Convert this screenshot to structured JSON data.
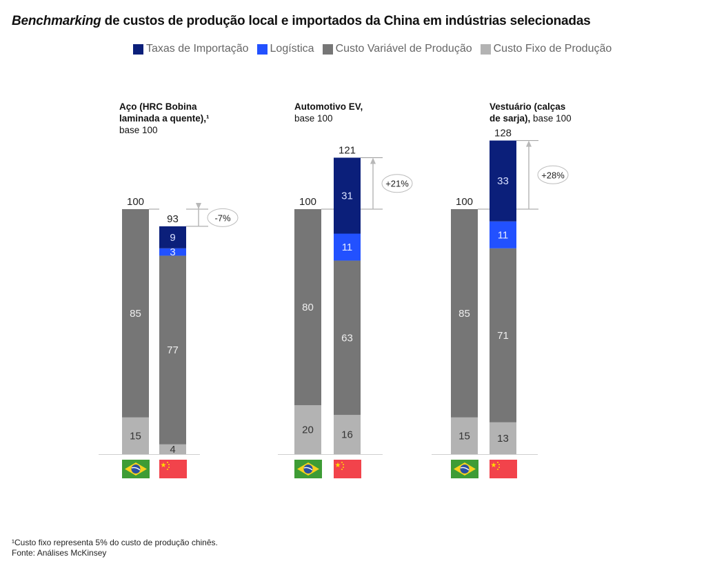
{
  "title": {
    "italic": "Benchmarking",
    "rest": " de custos de produção local e importados da China em indústrias selecionadas"
  },
  "legend": [
    {
      "label": "Taxas de Importação",
      "color": "#0b1f7a"
    },
    {
      "label": "Logística",
      "color": "#2251ff"
    },
    {
      "label": "Custo Variável de Produção",
      "color": "#767676"
    },
    {
      "label": "Custo Fixo de Produção",
      "color": "#b3b3b3"
    }
  ],
  "footer": {
    "note": "¹Custo fixo representa 5% do custo de produção chinês.",
    "source": " Fonte: Análises McKinsey"
  },
  "chart_data": {
    "type": "bar",
    "stacked": true,
    "title": "Benchmarking de custos de produção local e importados da China em indústrias selecionadas",
    "series_order": [
      "Custo Fixo de Produção",
      "Custo Variável de Produção",
      "Logística",
      "Taxas de Importação"
    ],
    "panels": [
      {
        "title_bold": "Aço (HRC Bobina laminada a quente),¹",
        "title_lines": [
          "Aço (HRC Bobina",
          "laminada a quente),¹"
        ],
        "subtitle": "base 100",
        "delta_label": "-7%",
        "bars": [
          {
            "country": "Brasil",
            "flag": "brazil-flag",
            "total": 100,
            "segments": {
              "Custo Fixo de Produção": 15,
              "Custo Variável de Produção": 85
            }
          },
          {
            "country": "China",
            "flag": "china-flag",
            "total": 93,
            "segments": {
              "Custo Fixo de Produção": 4,
              "Custo Variável de Produção": 77,
              "Logística": 3,
              "Taxas de Importação": 9
            }
          }
        ]
      },
      {
        "title_lines": [
          "Automotivo EV,"
        ],
        "subtitle": "base 100",
        "delta_label": "+21%",
        "bars": [
          {
            "country": "Brasil",
            "flag": "brazil-flag",
            "total": 100,
            "segments": {
              "Custo Fixo de Produção": 20,
              "Custo Variável de Produção": 80
            }
          },
          {
            "country": "China",
            "flag": "china-flag",
            "total": 121,
            "segments": {
              "Custo Fixo de Produção": 16,
              "Custo Variável de Produção": 63,
              "Logística": 11,
              "Taxas de Importação": 31
            }
          }
        ]
      },
      {
        "title_lines": [
          "Vestuário (calças",
          "de sarja),"
        ],
        "subtitle": "base 100",
        "delta_label": "+28%",
        "bars": [
          {
            "country": "Brasil",
            "flag": "brazil-flag",
            "total": 100,
            "segments": {
              "Custo Fixo de Produção": 15,
              "Custo Variável de Produção": 85
            }
          },
          {
            "country": "China",
            "flag": "china-flag",
            "total": 128,
            "segments": {
              "Custo Fixo de Produção": 13,
              "Custo Variável de Produção": 71,
              "Logística": 11,
              "Taxas de Importação": 33
            }
          }
        ]
      }
    ]
  }
}
